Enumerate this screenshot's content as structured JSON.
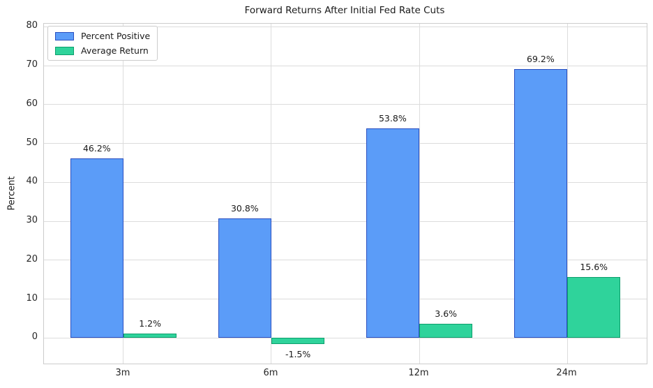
{
  "chart_data": {
    "type": "bar",
    "title": "Forward Returns After Initial Fed Rate Cuts",
    "xlabel": "",
    "ylabel": "Percent",
    "categories": [
      "3m",
      "6m",
      "12m",
      "24m"
    ],
    "series": [
      {
        "name": "Percent Positive",
        "color": "#5B9CF8",
        "edge_color": "#2A4FC0",
        "values": [
          46.2,
          30.8,
          53.8,
          69.2
        ],
        "labels": [
          "46.2%",
          "30.8%",
          "53.8%",
          "69.2%"
        ]
      },
      {
        "name": "Average Return",
        "color": "#2FD39B",
        "edge_color": "#0D9E6C",
        "values": [
          1.2,
          -1.5,
          3.6,
          15.6
        ],
        "labels": [
          "1.2%",
          "-1.5%",
          "3.6%",
          "15.6%"
        ]
      }
    ],
    "yticks": [
      0,
      10,
      20,
      30,
      40,
      50,
      60,
      70,
      80
    ],
    "ylim": [
      -6.6,
      80.8
    ],
    "xlim": [
      -0.5375,
      3.5375
    ],
    "bar_width": 0.36,
    "grid": true,
    "legend_position": "upper left"
  }
}
